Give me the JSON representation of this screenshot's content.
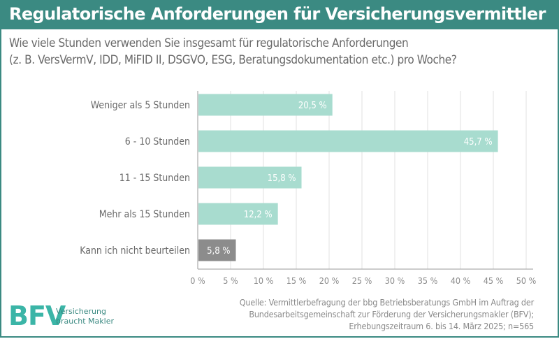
{
  "header": {
    "title": "Regulatorische Anforderungen für Versicherungsvermittler",
    "subtitle_lines": [
      "Wie viele Stunden verwenden Sie insgesamt für regulatorische Anforderungen",
      "(z. B. VersVermV, IDD, MiFID II, DSGVO, ESG, Beratungsdokumentation etc.) pro Woche?"
    ]
  },
  "colors": {
    "brand": "#3b8a82",
    "bar": "#a8dccf",
    "bar_muted": "#8c8c8c",
    "axis_text": "#8a8a8a",
    "category_text": "#6a6a6a"
  },
  "chart_data": {
    "type": "bar",
    "orientation": "horizontal",
    "categories": [
      "Weniger als 5 Stunden",
      "6 - 10 Stunden",
      "11 - 15 Stunden",
      "Mehr als 15 Stunden",
      "Kann ich nicht beurteilen"
    ],
    "values": [
      20.5,
      45.7,
      15.8,
      12.2,
      5.8
    ],
    "value_labels": [
      "20,5 %",
      "45,7 %",
      "15,8 %",
      "12,2 %",
      "5,8 %"
    ],
    "highlight": [
      false,
      false,
      false,
      false,
      true
    ],
    "xlim": [
      0,
      50
    ],
    "xticks": [
      0,
      5,
      10,
      15,
      20,
      25,
      30,
      35,
      40,
      45,
      50
    ],
    "xtick_labels": [
      "0 %",
      "5 %",
      "10 %",
      "15 %",
      "20 %",
      "25 %",
      "30 %",
      "35 %",
      "40 %",
      "45 %",
      "50 %"
    ],
    "grid": true
  },
  "source": {
    "lines": [
      "Quelle: Vermittlerbefragung der bbg Betriebsberatungs GmbH im Auftrag der",
      "Bundesarbeitsgemeinschaft zur Förderung der Versicherungsmakler (BFV);",
      "Erhebungszeitraum 6. bis 14. März 2025; n=565"
    ]
  },
  "logo": {
    "mark": "BFV",
    "tagline_lines": [
      "Versicherung",
      "braucht Makler"
    ]
  }
}
